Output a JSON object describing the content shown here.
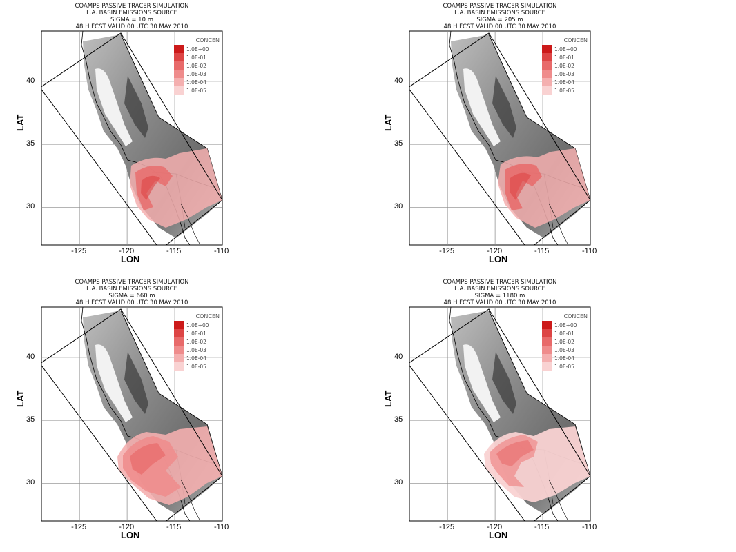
{
  "legend_title": "CONCEN",
  "legend_levels": [
    "1.0E+00",
    "1.0E-01",
    "1.0E-02",
    "1.0E-03",
    "1.0E-04",
    "1.0E-05"
  ],
  "legend_colors": [
    "#cc1a1a",
    "#dd4545",
    "#e86a6a",
    "#ef8c8c",
    "#f4afaf",
    "#f9d2d2"
  ],
  "axes": {
    "xlabel": "LON",
    "ylabel": "LAT",
    "xticks": [
      "-125",
      "-120",
      "-115",
      "-110"
    ],
    "yticks": [
      "40",
      "35",
      "30"
    ]
  },
  "panels": [
    {
      "line1": "COAMPS PASSIVE TRACER SIMULATION",
      "line2": "L.A. BASIN EMISSIONS SOURCE",
      "line3": "SIGMA = 10 m",
      "line4": "48 H FCST VALID 00 UTC 30 MAY 2010"
    },
    {
      "line1": "COAMPS PASSIVE TRACER SIMULATION",
      "line2": "L.A. BASIN EMISSIONS SOURCE",
      "line3": "SIGMA = 205 m",
      "line4": "48 H FCST VALID 00 UTC 30 MAY 2010"
    },
    {
      "line1": "COAMPS PASSIVE TRACER SIMULATION",
      "line2": "L.A. BASIN EMISSIONS SOURCE",
      "line3": "SIGMA = 660 m",
      "line4": "48 H FCST VALID 00 UTC 30 MAY 2010"
    },
    {
      "line1": "COAMPS PASSIVE TRACER SIMULATION",
      "line2": "L.A. BASIN EMISSIONS SOURCE",
      "line3": "SIGMA = 1180 m",
      "line4": "48 H FCST VALID 00 UTC 30 MAY 2010"
    }
  ]
}
